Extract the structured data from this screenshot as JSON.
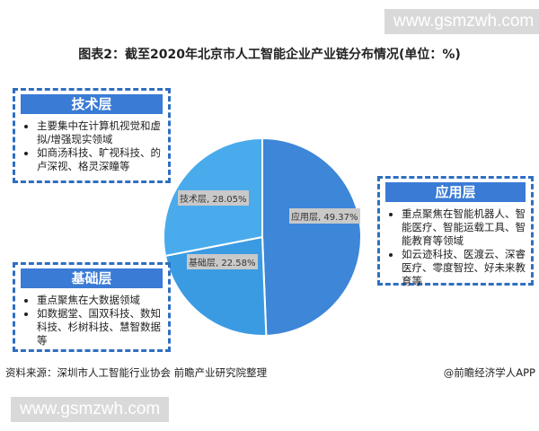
{
  "watermark": "www.gsmzwh.com",
  "chart_data": {
    "type": "pie",
    "title": "图表2：截至2020年北京市人工智能企业产业链分布情况(单位：%)",
    "slices": [
      {
        "label": "应用层",
        "value": 49.37,
        "text": "应用层, 49.37%",
        "color": "#3d86d8"
      },
      {
        "label": "基础层",
        "value": 22.58,
        "text": "基础层, 22.58%",
        "color": "#3b9be2"
      },
      {
        "label": "技术层",
        "value": 28.05,
        "text": "技术层, 28.05%",
        "color": "#49abec"
      }
    ]
  },
  "boxes": {
    "tech": {
      "title": "技术层",
      "items": [
        "主要集中在计算机视觉和虚拟/增强现实领域",
        "如商汤科技、旷视科技、的卢深视、格灵深瞳等"
      ]
    },
    "app": {
      "title": "应用层",
      "items": [
        "重点聚焦在智能机器人、智能医疗、智能运载工具、智能教育等领域",
        "如云迹科技、医渡云、深睿医疗、零度智控、好未来教育等"
      ]
    },
    "base": {
      "title": "基础层",
      "items": [
        "重点聚焦在大数据领域",
        "如数据堂、国双科技、数知科技、杉树科技、慧智数据等"
      ]
    }
  },
  "footer": {
    "source": "资料来源：深圳市人工智能行业协会 前瞻产业研究院整理",
    "brand": "@前瞻经济学人APP"
  }
}
